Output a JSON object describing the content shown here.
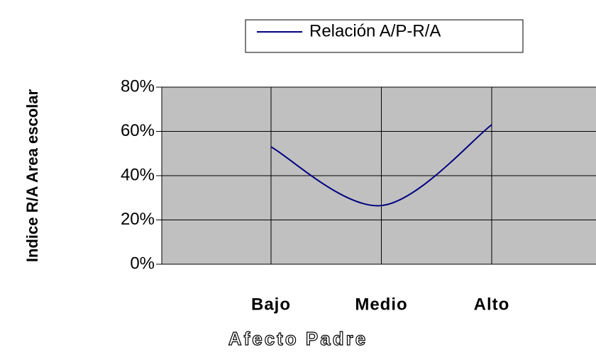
{
  "chart_data": {
    "type": "line",
    "legend_label": "Relación A/P-R/A",
    "y_axis_label": "Indice R/A Area escolar",
    "x_axis_label": "Afecto Padre",
    "categories": [
      "Bajo",
      "Medio",
      "Alto"
    ],
    "series": [
      {
        "name": "Relación A/P-R/A",
        "color": "#000080",
        "values": [
          53,
          26.5,
          63
        ]
      }
    ],
    "ylim": [
      0,
      80
    ],
    "yticks": [
      {
        "value": 0,
        "label": "0%"
      },
      {
        "value": 20,
        "label": "20%"
      },
      {
        "value": 40,
        "label": "40%"
      },
      {
        "value": 60,
        "label": "60%"
      },
      {
        "value": 80,
        "label": "80%"
      }
    ],
    "grid": true,
    "smooth": true,
    "legend_position": "top"
  }
}
